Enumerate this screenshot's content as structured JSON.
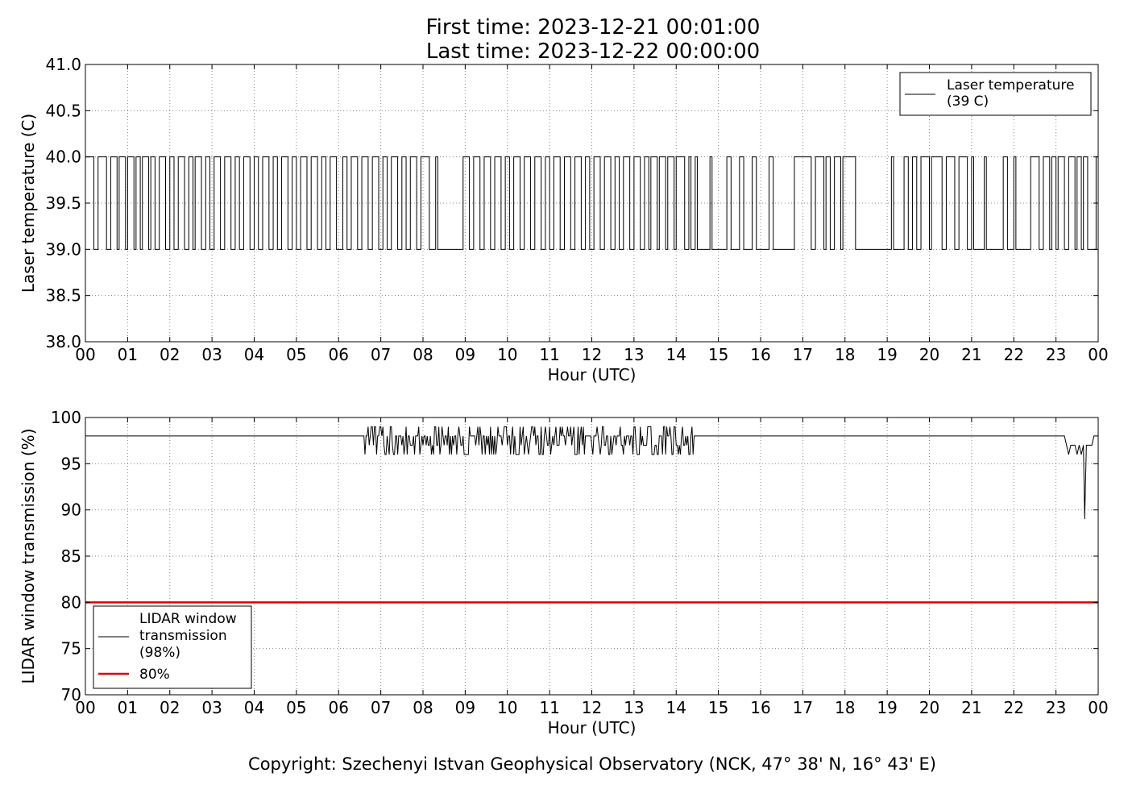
{
  "header": {
    "first_time": "First time: 2023-12-21 00:01:00",
    "last_time": "Last time: 2023-12-22 00:00:00"
  },
  "footer": {
    "copyright": "Copyright: Szechenyi Istvan Geophysical Observatory (NCK, 47° 38' N, 16° 43' E)"
  },
  "colors": {
    "series": "#000000",
    "threshold": "#dd0000",
    "grid": "#888888"
  },
  "chart_data": [
    {
      "type": "line",
      "xlabel": "Hour (UTC)",
      "ylabel": "Laser temperature (C)",
      "xlim": [
        0,
        24
      ],
      "ylim": [
        38.0,
        41.0
      ],
      "x_tick_labels": [
        "00",
        "01",
        "02",
        "03",
        "04",
        "05",
        "06",
        "07",
        "08",
        "09",
        "10",
        "11",
        "12",
        "13",
        "14",
        "15",
        "16",
        "17",
        "18",
        "19",
        "20",
        "21",
        "22",
        "23",
        "00"
      ],
      "y_tick_labels": [
        "38.0",
        "38.5",
        "39.0",
        "39.5",
        "40.0",
        "40.5",
        "41.0"
      ],
      "grid": true,
      "legend_position": "top-right",
      "series": [
        {
          "name": "Laser temperature (39 C)",
          "legend_lines": [
            "Laser temperature",
            "(39 C)"
          ],
          "step_levels": [
            39.0,
            40.0
          ],
          "high_intervals_hours": [
            [
              0.0,
              0.2
            ],
            [
              0.3,
              0.5
            ],
            [
              0.6,
              0.75
            ],
            [
              0.8,
              0.95
            ],
            [
              1.0,
              1.15
            ],
            [
              1.2,
              1.3
            ],
            [
              1.35,
              1.5
            ],
            [
              1.55,
              1.65
            ],
            [
              1.75,
              1.9
            ],
            [
              2.0,
              2.1
            ],
            [
              2.2,
              2.35
            ],
            [
              2.45,
              2.55
            ],
            [
              2.6,
              2.75
            ],
            [
              2.85,
              2.95
            ],
            [
              3.05,
              3.2
            ],
            [
              3.3,
              3.45
            ],
            [
              3.55,
              3.65
            ],
            [
              3.75,
              3.9
            ],
            [
              4.0,
              4.1
            ],
            [
              4.2,
              4.35
            ],
            [
              4.45,
              4.55
            ],
            [
              4.65,
              4.8
            ],
            [
              4.9,
              5.0
            ],
            [
              5.1,
              5.25
            ],
            [
              5.35,
              5.5
            ],
            [
              5.6,
              5.7
            ],
            [
              5.8,
              5.95
            ],
            [
              6.1,
              6.2
            ],
            [
              6.3,
              6.45
            ],
            [
              6.55,
              6.7
            ],
            [
              6.8,
              6.95
            ],
            [
              7.05,
              7.15
            ],
            [
              7.25,
              7.4
            ],
            [
              7.5,
              7.6
            ],
            [
              7.7,
              7.85
            ],
            [
              7.95,
              8.15
            ],
            [
              8.3,
              8.35
            ],
            [
              8.95,
              9.1
            ],
            [
              9.2,
              9.35
            ],
            [
              9.45,
              9.6
            ],
            [
              9.7,
              9.85
            ],
            [
              9.95,
              10.05
            ],
            [
              10.15,
              10.3
            ],
            [
              10.4,
              10.55
            ],
            [
              10.65,
              10.8
            ],
            [
              10.9,
              11.0
            ],
            [
              11.1,
              11.25
            ],
            [
              11.35,
              11.5
            ],
            [
              11.6,
              11.75
            ],
            [
              11.85,
              11.95
            ],
            [
              12.05,
              12.2
            ],
            [
              12.3,
              12.45
            ],
            [
              12.55,
              12.65
            ],
            [
              12.75,
              12.9
            ],
            [
              13.0,
              13.15
            ],
            [
              13.25,
              13.35
            ],
            [
              13.4,
              13.55
            ],
            [
              13.6,
              13.75
            ],
            [
              13.8,
              13.95
            ],
            [
              14.0,
              14.2
            ],
            [
              14.3,
              14.35
            ],
            [
              14.45,
              14.5
            ],
            [
              14.8,
              14.85
            ],
            [
              15.2,
              15.3
            ],
            [
              15.5,
              15.6
            ],
            [
              15.8,
              15.9
            ],
            [
              16.2,
              16.3
            ],
            [
              16.8,
              17.2
            ],
            [
              17.3,
              17.5
            ],
            [
              17.55,
              17.65
            ],
            [
              17.75,
              17.9
            ],
            [
              17.95,
              18.25
            ],
            [
              19.1,
              19.15
            ],
            [
              19.4,
              19.5
            ],
            [
              19.6,
              19.7
            ],
            [
              19.8,
              20.0
            ],
            [
              20.05,
              20.3
            ],
            [
              20.4,
              20.6
            ],
            [
              20.7,
              20.9
            ],
            [
              21.0,
              21.05
            ],
            [
              21.3,
              21.35
            ],
            [
              21.75,
              21.85
            ],
            [
              22.0,
              22.05
            ],
            [
              22.4,
              22.6
            ],
            [
              22.7,
              22.85
            ],
            [
              22.9,
              23.0
            ],
            [
              23.05,
              23.2
            ],
            [
              23.3,
              23.45
            ],
            [
              23.5,
              23.6
            ],
            [
              23.65,
              23.75
            ],
            [
              23.95,
              24.0
            ]
          ]
        }
      ]
    },
    {
      "type": "line",
      "xlabel": "Hour (UTC)",
      "ylabel": "LIDAR window transmission (%)",
      "xlim": [
        0,
        24
      ],
      "ylim": [
        70,
        100
      ],
      "x_tick_labels": [
        "00",
        "01",
        "02",
        "03",
        "04",
        "05",
        "06",
        "07",
        "08",
        "09",
        "10",
        "11",
        "12",
        "13",
        "14",
        "15",
        "16",
        "17",
        "18",
        "19",
        "20",
        "21",
        "22",
        "23",
        "00"
      ],
      "y_tick_labels": [
        "70",
        "75",
        "80",
        "85",
        "90",
        "95",
        "100"
      ],
      "grid": true,
      "legend_position": "lower-left",
      "series": [
        {
          "name": "LIDAR window transmission (98%)",
          "legend_lines": [
            "LIDAR window",
            "transmission",
            "(98%)"
          ],
          "baseline": 98,
          "noisy_range_hours": [
            6.6,
            14.45
          ],
          "noise_values": [
            96,
            97,
            98,
            99
          ],
          "late_points": [
            [
              23.2,
              98
            ],
            [
              23.25,
              97
            ],
            [
              23.3,
              96
            ],
            [
              23.35,
              97
            ],
            [
              23.45,
              97
            ],
            [
              23.5,
              96
            ],
            [
              23.55,
              97
            ],
            [
              23.6,
              96
            ],
            [
              23.65,
              97
            ],
            [
              23.68,
              89
            ],
            [
              23.72,
              97
            ],
            [
              23.85,
              97
            ],
            [
              23.9,
              98
            ],
            [
              24.0,
              98
            ]
          ]
        },
        {
          "name": "80%",
          "legend_lines": [
            "80%"
          ],
          "threshold": 80
        }
      ]
    }
  ]
}
